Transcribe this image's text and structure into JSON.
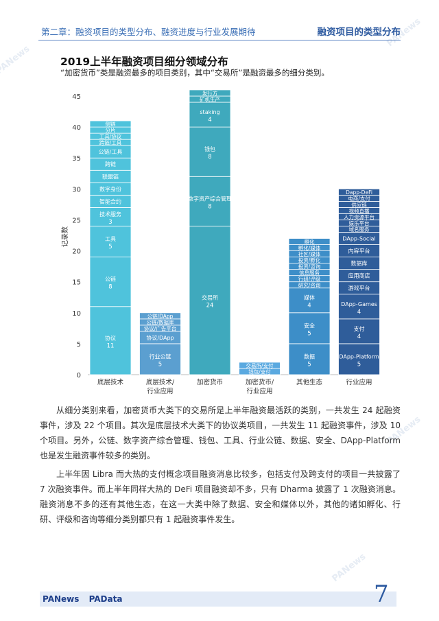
{
  "header": {
    "left": "第二章：融资项目的类型分布、融资进度与行业发展期待",
    "right": "融资项目的类型分布"
  },
  "chart_data": {
    "type": "bar",
    "title": "2019上半年融资项目细分领域分布",
    "subtitle": "“加密货币”类是融资最多的项目类别，其中“交易所”是融资最多的细分类别。",
    "ylabel": "记录数",
    "ylim": [
      0,
      45
    ],
    "yticks": [
      0,
      5,
      10,
      15,
      20,
      25,
      30,
      35,
      40,
      45
    ],
    "stacked": true,
    "colors": [
      "#4fc3dc",
      "#5b9fd0",
      "#3fa9bd",
      "#5aa9e0",
      "#3d8ec8",
      "#2f5d9a"
    ],
    "categories": [
      {
        "label": "底层技术",
        "segments": [
          {
            "name": "协议",
            "value": 11,
            "show_value": true
          },
          {
            "name": "公链",
            "value": 8,
            "show_value": true
          },
          {
            "name": "工具",
            "value": 5,
            "show_value": true
          },
          {
            "name": "技术服务",
            "value": 3,
            "show_value": true
          },
          {
            "name": "智能合约",
            "value": 2,
            "show_value": false
          },
          {
            "name": "数字身份",
            "value": 2,
            "show_value": false
          },
          {
            "name": "联盟链",
            "value": 2,
            "show_value": false
          },
          {
            "name": "跨链",
            "value": 2,
            "show_value": false
          },
          {
            "name": "公链/工具",
            "value": 2,
            "show_value": false
          },
          {
            "name": "跨链/工具",
            "value": 1,
            "show_value": false
          },
          {
            "name": "工具/协议",
            "value": 1,
            "show_value": false
          },
          {
            "name": "分片",
            "value": 1,
            "show_value": false
          },
          {
            "name": "侧链",
            "value": 1,
            "show_value": false
          }
        ]
      },
      {
        "label": "底层技术/行业应用",
        "segments": [
          {
            "name": "行业公链",
            "value": 5,
            "show_value": true
          },
          {
            "name": "协议/DApp",
            "value": 2,
            "show_value": false
          },
          {
            "name": "协议/广告平台",
            "value": 1,
            "show_value": false
          },
          {
            "name": "公链/数据库",
            "value": 1,
            "show_value": false
          },
          {
            "name": "公链/DApp",
            "value": 1,
            "show_value": false
          }
        ]
      },
      {
        "label": "加密货币",
        "segments": [
          {
            "name": "交易所",
            "value": 24,
            "show_value": true
          },
          {
            "name": "数字资产综合管理",
            "value": 8,
            "show_value": true
          },
          {
            "name": "钱包",
            "value": 8,
            "show_value": true
          },
          {
            "name": "staking",
            "value": 4,
            "show_value": true
          },
          {
            "name": "矿机生产",
            "value": 1,
            "show_value": false
          },
          {
            "name": "发行方",
            "value": 1,
            "show_value": false
          }
        ]
      },
      {
        "label": "加密货币/行业应用",
        "segments": [
          {
            "name": "钱包/支付",
            "value": 1,
            "show_value": false
          },
          {
            "name": "交易所/支付",
            "value": 1,
            "show_value": false
          }
        ]
      },
      {
        "label": "其他生态",
        "segments": [
          {
            "name": "数据",
            "value": 5,
            "show_value": true
          },
          {
            "name": "安全",
            "value": 5,
            "show_value": true
          },
          {
            "name": "媒体",
            "value": 4,
            "show_value": true
          },
          {
            "name": "研究/咨询",
            "value": 1,
            "show_value": false
          },
          {
            "name": "行研/评级",
            "value": 1,
            "show_value": false
          },
          {
            "name": "信息服务",
            "value": 1,
            "show_value": false
          },
          {
            "name": "投资/咨询",
            "value": 1,
            "show_value": false
          },
          {
            "name": "投资/孵化",
            "value": 1,
            "show_value": false
          },
          {
            "name": "社区/媒体",
            "value": 1,
            "show_value": false
          },
          {
            "name": "孵化/媒体",
            "value": 1,
            "show_value": false
          },
          {
            "name": "孵化",
            "value": 1,
            "show_value": false
          }
        ]
      },
      {
        "label": "行业应用",
        "segments": [
          {
            "name": "DApp-Platform",
            "value": 5,
            "show_value": true
          },
          {
            "name": "支付",
            "value": 4,
            "show_value": true
          },
          {
            "name": "DApp-Games",
            "value": 4,
            "show_value": true
          },
          {
            "name": "游戏平台",
            "value": 2,
            "show_value": false
          },
          {
            "name": "应用商店",
            "value": 2,
            "show_value": false
          },
          {
            "name": "数据库",
            "value": 2,
            "show_value": false
          },
          {
            "name": "内容平台",
            "value": 2,
            "show_value": false
          },
          {
            "name": "DApp-Social",
            "value": 2,
            "show_value": false
          },
          {
            "name": "域名服务",
            "value": 1,
            "show_value": false
          },
          {
            "name": "娱乐平台",
            "value": 1,
            "show_value": false
          },
          {
            "name": "人力资源平台",
            "value": 1,
            "show_value": false
          },
          {
            "name": "视频直播",
            "value": 1,
            "show_value": false
          },
          {
            "name": "供应链",
            "value": 1,
            "show_value": false
          },
          {
            "name": "电商/支付",
            "value": 1,
            "show_value": false
          },
          {
            "name": "Dapp-DeFi",
            "value": 1,
            "show_value": false
          }
        ]
      }
    ]
  },
  "body": {
    "p1": "从细分类别来看，加密货币大类下的交易所是上半年融资最活跃的类别，一共发生 24 起融资事件，涉及 22 个项目。其次是底层技术大类下的协议类项目，一共发生 11 起融资事件，涉及 10 个项目。另外，公链、数字资产综合管理、钱包、工具、行业公链、数据、安全、DApp-Platform 也是发生融资事件较多的类别。",
    "p2": "上半年因 Libra 而大热的支付概念项目融资消息比较多，包括支付及跨支付的项目一共披露了 7 次融资事件。而上半年同样大热的 DeFi 项目融资却不多，只有 Dharma 披露了 1 次融资消息。融资消息不多的还有其他生态，在这一大类中除了数据、安全和媒体以外，其他的诸如孵化、行研、评级和咨询等细分类别都只有 1 起融资事件发生。"
  },
  "footer": {
    "logo1": "PANews",
    "logo2": "PAData",
    "page_number": "7"
  },
  "watermark": "PANews"
}
